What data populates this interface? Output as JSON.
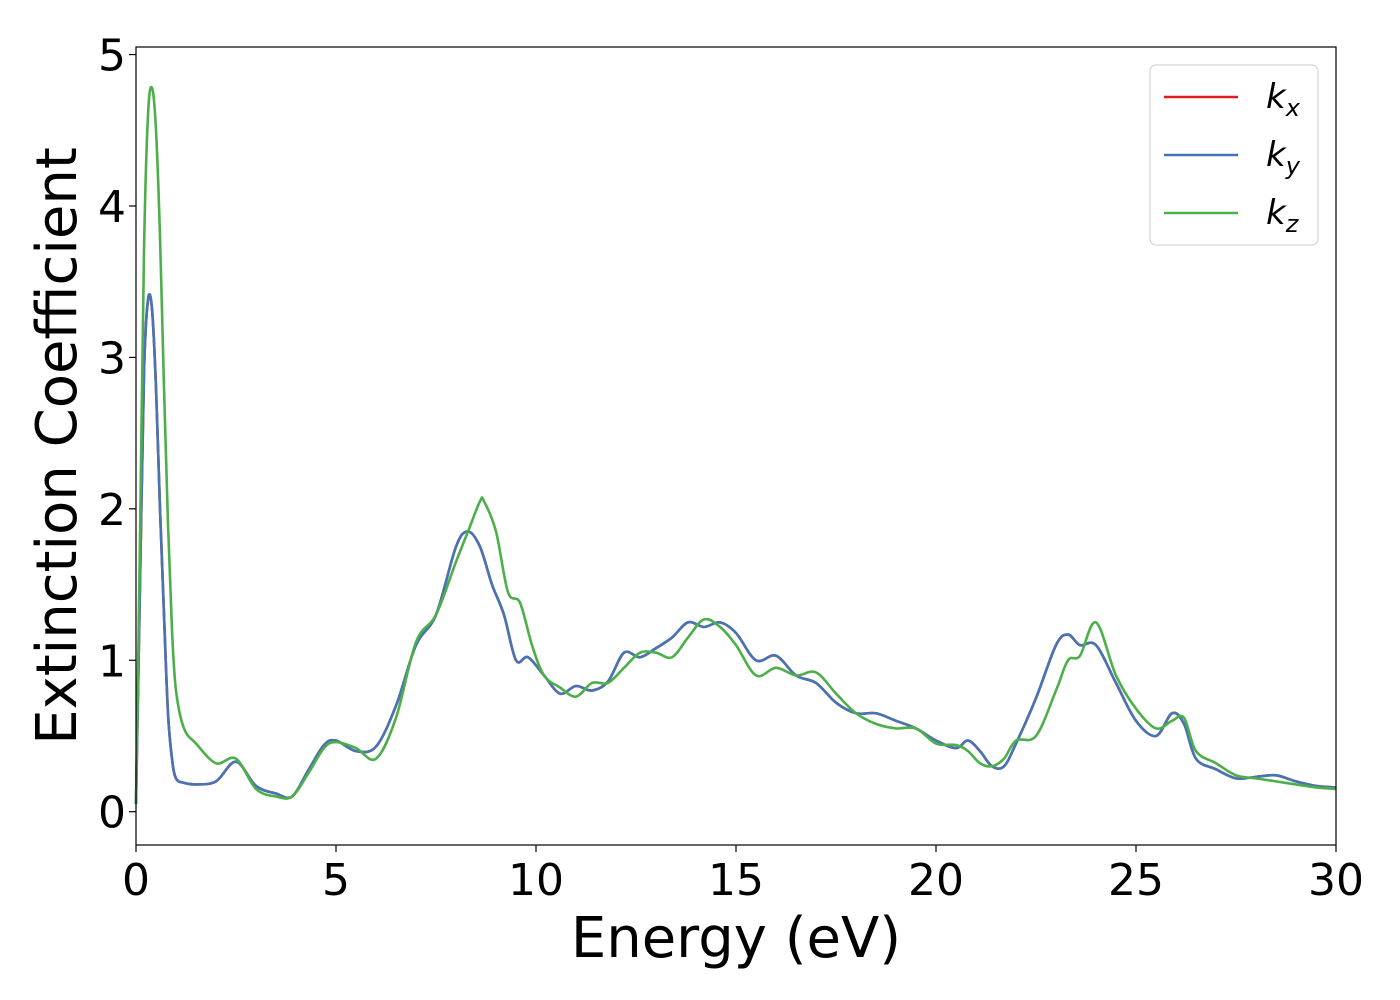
{
  "chart_data": {
    "type": "line",
    "title": "",
    "xlabel": "Energy (eV)",
    "ylabel": "Extinction Coefficient",
    "xlim": [
      0,
      30
    ],
    "ylim": [
      -0.22,
      5.05
    ],
    "xticks": [
      0,
      5,
      10,
      15,
      20,
      25,
      30
    ],
    "yticks": [
      0,
      1,
      2,
      3,
      4,
      5
    ],
    "grid": false,
    "legend_position": "top-right",
    "series": [
      {
        "name": "k_x",
        "label_base": "k",
        "label_sub": "x",
        "color": "#e41a1c",
        "x": [
          0,
          0.1,
          0.2,
          0.3,
          0.4,
          0.5,
          0.6,
          0.7,
          0.8,
          0.9,
          1.0,
          1.2,
          1.5,
          2.0,
          2.5,
          3.0,
          3.5,
          3.9,
          4.3,
          4.7,
          5.0,
          5.5,
          6.0,
          6.5,
          7.0,
          7.5,
          8.0,
          8.3,
          8.6,
          8.9,
          9.2,
          9.5,
          9.8,
          10.2,
          10.6,
          11.0,
          11.4,
          11.8,
          12.2,
          12.6,
          13.0,
          13.4,
          13.8,
          14.2,
          14.6,
          15.0,
          15.5,
          16.0,
          16.5,
          17.0,
          17.5,
          18.0,
          18.5,
          19.0,
          19.5,
          20.0,
          20.5,
          20.8,
          21.1,
          21.4,
          21.7,
          22.0,
          22.5,
          23.0,
          23.3,
          23.6,
          24.0,
          24.5,
          25.0,
          25.5,
          25.9,
          26.2,
          26.5,
          27.0,
          27.5,
          28.0,
          28.5,
          29.0,
          29.5,
          30.0
        ],
        "y": [
          0.05,
          1.5,
          2.9,
          3.38,
          3.32,
          2.8,
          2.0,
          1.3,
          0.65,
          0.35,
          0.22,
          0.19,
          0.18,
          0.2,
          0.33,
          0.17,
          0.12,
          0.1,
          0.27,
          0.44,
          0.47,
          0.4,
          0.43,
          0.7,
          1.1,
          1.3,
          1.75,
          1.85,
          1.75,
          1.5,
          1.3,
          1.0,
          1.02,
          0.9,
          0.78,
          0.83,
          0.8,
          0.86,
          1.05,
          1.02,
          1.08,
          1.15,
          1.25,
          1.22,
          1.25,
          1.18,
          1.0,
          1.03,
          0.9,
          0.85,
          0.72,
          0.65,
          0.65,
          0.6,
          0.55,
          0.47,
          0.42,
          0.47,
          0.4,
          0.3,
          0.3,
          0.45,
          0.75,
          1.1,
          1.17,
          1.1,
          1.1,
          0.85,
          0.6,
          0.5,
          0.65,
          0.58,
          0.35,
          0.28,
          0.22,
          0.23,
          0.24,
          0.2,
          0.17,
          0.16
        ]
      },
      {
        "name": "k_y",
        "label_base": "k",
        "label_sub": "y",
        "color": "#4575b4",
        "x": [
          0,
          0.1,
          0.2,
          0.3,
          0.4,
          0.5,
          0.6,
          0.7,
          0.8,
          0.9,
          1.0,
          1.2,
          1.5,
          2.0,
          2.5,
          3.0,
          3.5,
          3.9,
          4.3,
          4.7,
          5.0,
          5.5,
          6.0,
          6.5,
          7.0,
          7.5,
          8.0,
          8.3,
          8.6,
          8.9,
          9.2,
          9.5,
          9.8,
          10.2,
          10.6,
          11.0,
          11.4,
          11.8,
          12.2,
          12.6,
          13.0,
          13.4,
          13.8,
          14.2,
          14.6,
          15.0,
          15.5,
          16.0,
          16.5,
          17.0,
          17.5,
          18.0,
          18.5,
          19.0,
          19.5,
          20.0,
          20.5,
          20.8,
          21.1,
          21.4,
          21.7,
          22.0,
          22.5,
          23.0,
          23.3,
          23.6,
          24.0,
          24.5,
          25.0,
          25.5,
          25.9,
          26.2,
          26.5,
          27.0,
          27.5,
          28.0,
          28.5,
          29.0,
          29.5,
          30.0
        ],
        "y": [
          0.05,
          1.5,
          2.9,
          3.38,
          3.32,
          2.8,
          2.0,
          1.3,
          0.65,
          0.35,
          0.22,
          0.19,
          0.18,
          0.2,
          0.33,
          0.17,
          0.12,
          0.1,
          0.27,
          0.44,
          0.47,
          0.4,
          0.43,
          0.7,
          1.1,
          1.3,
          1.75,
          1.85,
          1.75,
          1.5,
          1.3,
          1.0,
          1.02,
          0.9,
          0.78,
          0.83,
          0.8,
          0.86,
          1.05,
          1.02,
          1.08,
          1.15,
          1.25,
          1.22,
          1.25,
          1.18,
          1.0,
          1.03,
          0.9,
          0.85,
          0.72,
          0.65,
          0.65,
          0.6,
          0.55,
          0.47,
          0.42,
          0.47,
          0.4,
          0.3,
          0.3,
          0.45,
          0.75,
          1.1,
          1.17,
          1.1,
          1.1,
          0.85,
          0.6,
          0.5,
          0.65,
          0.58,
          0.35,
          0.28,
          0.22,
          0.23,
          0.24,
          0.2,
          0.17,
          0.16
        ]
      },
      {
        "name": "k_z",
        "label_base": "k",
        "label_sub": "z",
        "color": "#4daf4a",
        "x": [
          0,
          0.1,
          0.2,
          0.3,
          0.4,
          0.5,
          0.6,
          0.7,
          0.8,
          0.9,
          1.0,
          1.2,
          1.5,
          2.0,
          2.5,
          3.0,
          3.5,
          3.9,
          4.3,
          4.7,
          5.0,
          5.5,
          6.0,
          6.5,
          7.0,
          7.5,
          8.0,
          8.3,
          8.6,
          8.7,
          9.0,
          9.3,
          9.6,
          9.9,
          10.2,
          10.6,
          11.0,
          11.4,
          11.8,
          12.2,
          12.6,
          13.0,
          13.4,
          13.8,
          14.2,
          14.6,
          15.0,
          15.5,
          16.0,
          16.5,
          17.0,
          17.5,
          18.0,
          18.5,
          19.0,
          19.5,
          20.0,
          20.5,
          20.8,
          21.1,
          21.4,
          21.7,
          22.0,
          22.5,
          23.0,
          23.3,
          23.6,
          24.0,
          24.5,
          25.0,
          25.5,
          25.9,
          26.2,
          26.5,
          27.0,
          27.5,
          28.0,
          28.5,
          29.0,
          29.5,
          30.0
        ],
        "y": [
          0.05,
          1.8,
          3.7,
          4.6,
          4.78,
          4.5,
          3.8,
          2.8,
          1.9,
          1.2,
          0.8,
          0.55,
          0.45,
          0.32,
          0.35,
          0.15,
          0.1,
          0.1,
          0.25,
          0.42,
          0.46,
          0.42,
          0.35,
          0.62,
          1.12,
          1.3,
          1.65,
          1.85,
          2.05,
          2.05,
          1.85,
          1.45,
          1.38,
          1.1,
          0.9,
          0.82,
          0.76,
          0.85,
          0.85,
          0.95,
          1.05,
          1.05,
          1.02,
          1.15,
          1.27,
          1.22,
          1.1,
          0.9,
          0.95,
          0.9,
          0.92,
          0.78,
          0.65,
          0.58,
          0.55,
          0.55,
          0.45,
          0.44,
          0.4,
          0.32,
          0.3,
          0.35,
          0.47,
          0.5,
          0.8,
          1.0,
          1.03,
          1.25,
          0.9,
          0.68,
          0.55,
          0.6,
          0.62,
          0.4,
          0.32,
          0.24,
          0.22,
          0.2,
          0.18,
          0.16,
          0.15
        ]
      }
    ]
  }
}
